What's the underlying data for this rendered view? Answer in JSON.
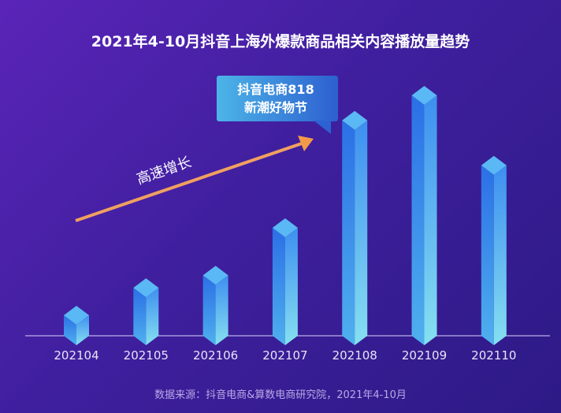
{
  "chart_data": {
    "type": "bar",
    "title": "2021年4-10月抖音上海外爆款商品相关内容播放量趋势",
    "categories": [
      "202104",
      "202105",
      "202106",
      "202107",
      "202108",
      "202109",
      "202110"
    ],
    "values": [
      12,
      23,
      28,
      47,
      90,
      100,
      72
    ],
    "ylim": [
      0,
      100
    ],
    "y_axis_shown": false,
    "grid": false,
    "callout": {
      "line1": "抖音电商818",
      "line2": "新潮好物节",
      "target": "202108"
    },
    "arrow_label": "高速增长",
    "colors": {
      "bar": "#2f7be8",
      "bar_light": "#7fd8f0",
      "arrow": "#f39a4a",
      "callout": "#3a8fe0"
    },
    "source": "数据来源：抖音电商&算数电商研究院，2021年4-10月"
  }
}
